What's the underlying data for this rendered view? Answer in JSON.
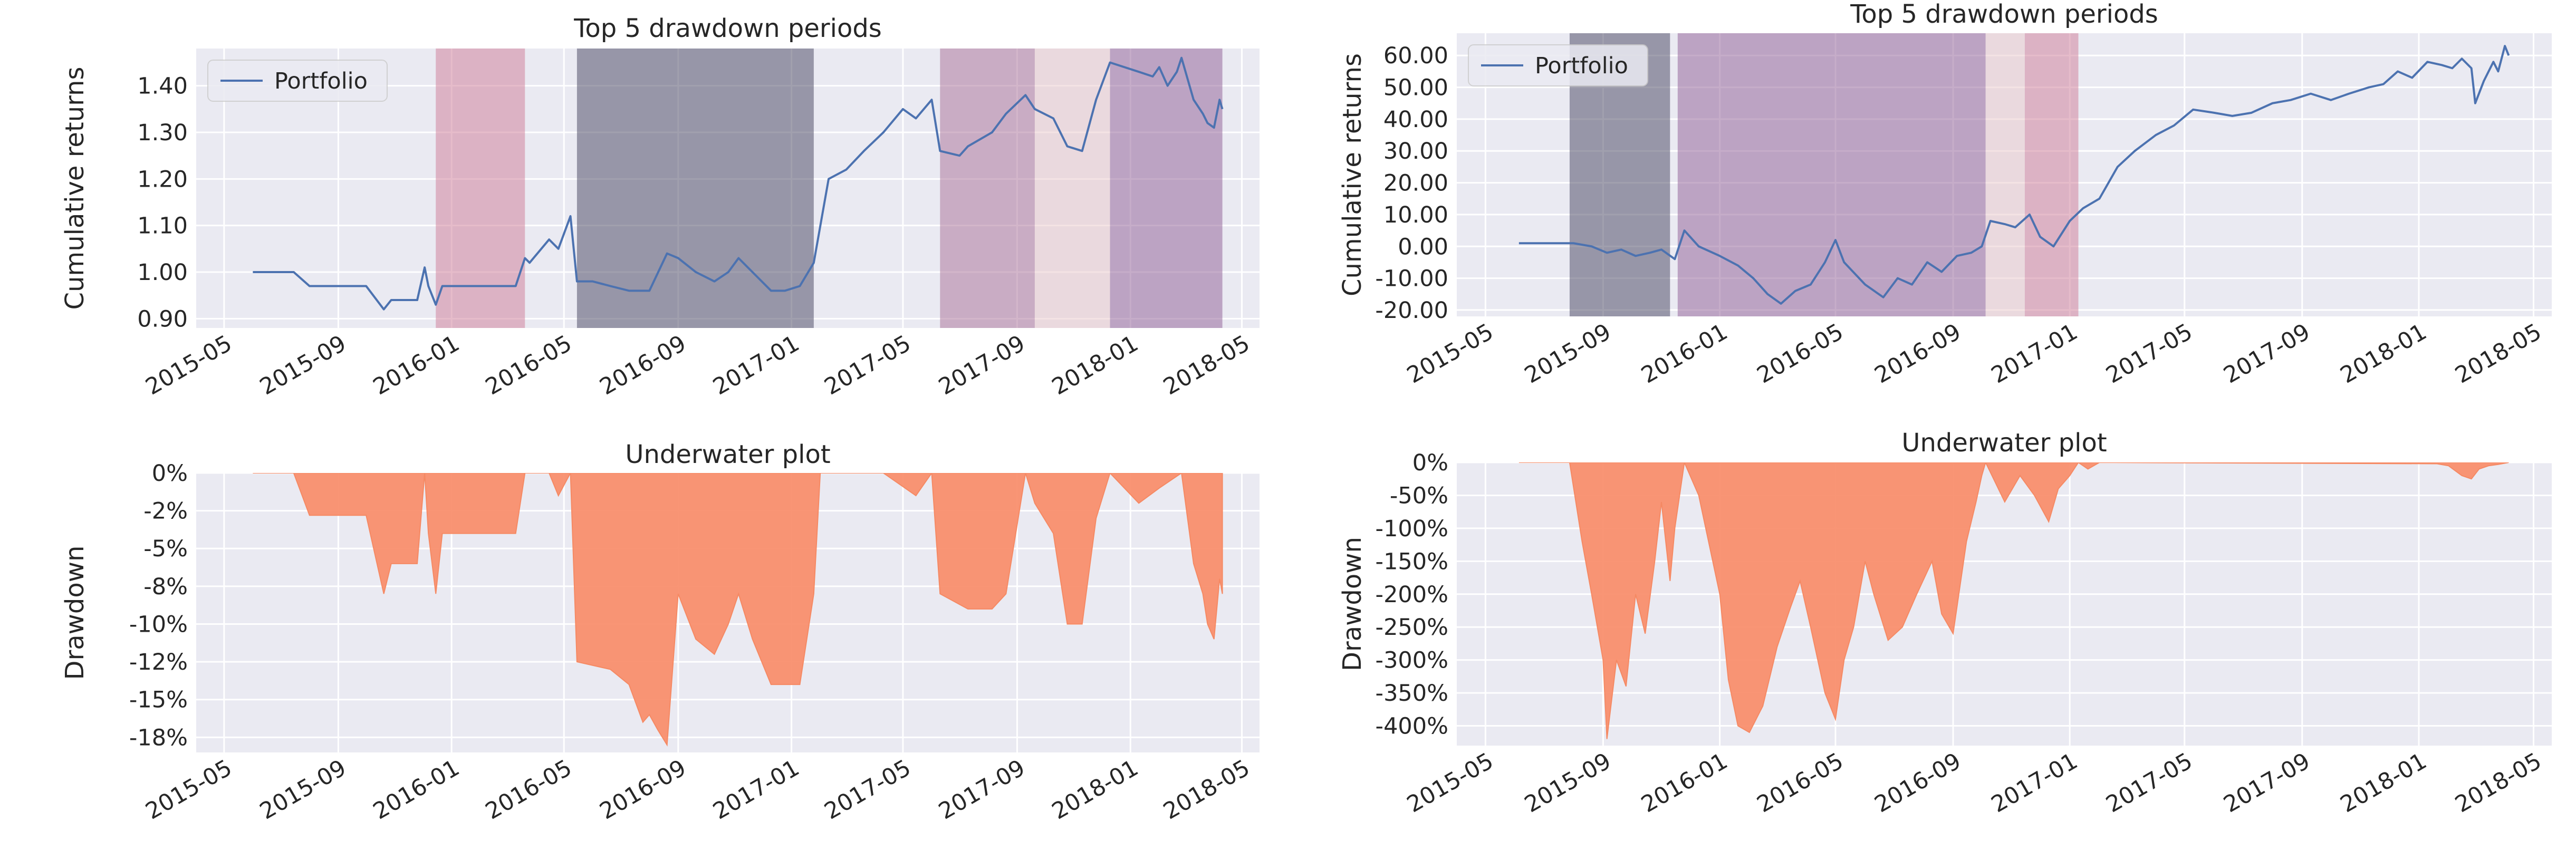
{
  "colors": {
    "portfolio_line": "#4c72b0",
    "underwater_fill": "#f9906e",
    "underwater_edge": "#f6845c",
    "period_colors": [
      "#44415e",
      "#8d5b93",
      "#a86d96",
      "#cd7a95",
      "#eac8ca"
    ]
  },
  "chart_data": [
    {
      "id": "p1-top5",
      "type": "line",
      "title": "Top 5 drawdown periods",
      "xlabel": "",
      "ylabel": "Cumulative returns",
      "xlim": [
        "2015-04-01",
        "2018-05-20"
      ],
      "ylim": [
        0.88,
        1.48
      ],
      "xticks": [
        "2015-05",
        "2015-09",
        "2016-01",
        "2016-05",
        "2016-09",
        "2017-01",
        "2017-05",
        "2017-09",
        "2018-01",
        "2018-05"
      ],
      "yticks": [
        0.9,
        1.0,
        1.1,
        1.2,
        1.3,
        1.4
      ],
      "ytick_labels": [
        "0.90",
        "1.00",
        "1.10",
        "1.20",
        "1.30",
        "1.40"
      ],
      "legend": {
        "entries": [
          "Portfolio"
        ],
        "placement": "upper-left"
      },
      "grid": true,
      "shaded_periods": [
        {
          "start": "2015-12-15",
          "end": "2016-03-20",
          "color_index": 3
        },
        {
          "start": "2016-05-15",
          "end": "2017-01-25",
          "color_index": 0
        },
        {
          "start": "2017-06-10",
          "end": "2017-09-20",
          "color_index": 2
        },
        {
          "start": "2017-09-20",
          "end": "2017-12-10",
          "color_index": 4
        },
        {
          "start": "2017-12-10",
          "end": "2018-04-10",
          "color_index": 1
        }
      ],
      "series": [
        {
          "name": "Portfolio",
          "x": [
            "2015-06-01",
            "2015-07-15",
            "2015-08-01",
            "2015-10-01",
            "2015-10-20",
            "2015-10-28",
            "2015-11-25",
            "2015-12-03",
            "2015-12-07",
            "2015-12-15",
            "2015-12-22",
            "2016-01-05",
            "2016-01-15",
            "2016-02-15",
            "2016-03-10",
            "2016-03-20",
            "2016-03-25",
            "2016-04-15",
            "2016-04-25",
            "2016-05-08",
            "2016-05-15",
            "2016-05-20",
            "2016-06-01",
            "2016-06-20",
            "2016-07-10",
            "2016-08-01",
            "2016-08-20",
            "2016-09-01",
            "2016-09-20",
            "2016-10-10",
            "2016-10-25",
            "2016-11-05",
            "2016-11-20",
            "2016-12-10",
            "2016-12-25",
            "2017-01-10",
            "2017-01-25",
            "2017-02-10",
            "2017-03-01",
            "2017-03-20",
            "2017-04-10",
            "2017-05-01",
            "2017-05-15",
            "2017-06-01",
            "2017-06-10",
            "2017-07-01",
            "2017-07-10",
            "2017-08-05",
            "2017-08-20",
            "2017-09-10",
            "2017-09-20",
            "2017-10-10",
            "2017-10-25",
            "2017-11-10",
            "2017-11-25",
            "2017-12-10",
            "2018-01-10",
            "2018-01-25",
            "2018-02-01",
            "2018-02-10",
            "2018-02-20",
            "2018-02-25",
            "2018-03-10",
            "2018-03-20",
            "2018-03-25",
            "2018-04-01",
            "2018-04-07",
            "2018-04-10"
          ],
          "y": [
            1.0,
            1.0,
            0.97,
            0.97,
            0.92,
            0.94,
            0.94,
            1.01,
            0.97,
            0.93,
            0.97,
            0.97,
            0.97,
            0.97,
            0.97,
            1.03,
            1.02,
            1.07,
            1.05,
            1.12,
            0.98,
            0.98,
            0.98,
            0.97,
            0.96,
            0.96,
            1.04,
            1.03,
            1.0,
            0.98,
            1.0,
            1.03,
            1.0,
            0.96,
            0.96,
            0.97,
            1.02,
            1.2,
            1.22,
            1.26,
            1.3,
            1.35,
            1.33,
            1.37,
            1.26,
            1.25,
            1.27,
            1.3,
            1.34,
            1.38,
            1.35,
            1.33,
            1.27,
            1.26,
            1.37,
            1.45,
            1.43,
            1.42,
            1.44,
            1.4,
            1.43,
            1.46,
            1.37,
            1.34,
            1.32,
            1.31,
            1.37,
            1.35
          ]
        }
      ]
    },
    {
      "id": "p1-underwater",
      "type": "area",
      "title": "Underwater plot",
      "xlabel": "",
      "ylabel": "Drawdown",
      "xlim": [
        "2015-04-01",
        "2018-05-20"
      ],
      "ylim": [
        -18.5,
        0
      ],
      "xticks": [
        "2015-05",
        "2015-09",
        "2016-01",
        "2016-05",
        "2016-09",
        "2017-01",
        "2017-05",
        "2017-09",
        "2018-01",
        "2018-05"
      ],
      "yticks": [
        0,
        -2.5,
        -5,
        -7.5,
        -10,
        -12.5,
        -15,
        -17.5
      ],
      "ytick_labels": [
        "0%",
        "-2%",
        "-5%",
        "-8%",
        "-10%",
        "-12%",
        "-15%",
        "-18%"
      ],
      "grid": true,
      "series": [
        {
          "name": "",
          "x": [
            "2015-06-01",
            "2015-07-15",
            "2015-08-01",
            "2015-10-01",
            "2015-10-20",
            "2015-10-28",
            "2015-11-25",
            "2015-12-03",
            "2015-12-07",
            "2015-12-15",
            "2015-12-22",
            "2016-01-05",
            "2016-02-15",
            "2016-03-10",
            "2016-03-20",
            "2016-04-15",
            "2016-04-25",
            "2016-05-08",
            "2016-05-15",
            "2016-06-20",
            "2016-07-10",
            "2016-07-25",
            "2016-08-01",
            "2016-08-10",
            "2016-08-20",
            "2016-09-01",
            "2016-09-20",
            "2016-10-10",
            "2016-10-25",
            "2016-11-05",
            "2016-11-20",
            "2016-12-10",
            "2016-12-25",
            "2017-01-10",
            "2017-01-25",
            "2017-02-01",
            "2017-04-10",
            "2017-05-15",
            "2017-06-01",
            "2017-06-10",
            "2017-07-10",
            "2017-08-05",
            "2017-08-20",
            "2017-09-10",
            "2017-09-20",
            "2017-10-10",
            "2017-10-25",
            "2017-11-10",
            "2017-11-25",
            "2017-12-10",
            "2018-01-10",
            "2018-02-01",
            "2018-02-25",
            "2018-03-10",
            "2018-03-20",
            "2018-03-25",
            "2018-04-01",
            "2018-04-07",
            "2018-04-10"
          ],
          "y": [
            0,
            0,
            -2.8,
            -2.8,
            -8.0,
            -6.0,
            -6.0,
            0,
            -4.0,
            -8.0,
            -4.0,
            -4.0,
            -4.0,
            -4.0,
            0,
            0,
            -1.5,
            0,
            -12.5,
            -13,
            -14,
            -16.5,
            -16,
            -17,
            -18,
            -8,
            -11,
            -12,
            -10,
            -8,
            -11,
            -14,
            -14,
            -14,
            -8,
            0,
            0,
            -1.5,
            0,
            -8,
            -9,
            -9,
            -8,
            0,
            -2,
            -4,
            -10,
            -10,
            -3,
            0,
            -2,
            -1,
            0,
            -6,
            -8,
            -10,
            -11,
            -7,
            -8
          ]
        }
      ]
    },
    {
      "id": "p2-top5",
      "type": "line",
      "title": "Top 5 drawdown periods",
      "xlabel": "",
      "ylabel": "Cumulative returns",
      "xlim": [
        "2015-04-01",
        "2018-05-20"
      ],
      "ylim": [
        -22,
        67
      ],
      "xticks": [
        "2015-05",
        "2015-09",
        "2016-01",
        "2016-05",
        "2016-09",
        "2017-01",
        "2017-05",
        "2017-09",
        "2018-01",
        "2018-05"
      ],
      "yticks": [
        60,
        50,
        40,
        30,
        20,
        10,
        0,
        -10,
        -20
      ],
      "ytick_labels": [
        "60.00",
        "50.00",
        "40.00",
        "30.00",
        "20.00",
        "10.00",
        "0.00",
        "-10.00",
        "-20.00"
      ],
      "legend": {
        "entries": [
          "Portfolio"
        ],
        "placement": "upper-left"
      },
      "grid": true,
      "shaded_periods": [
        {
          "start": "2015-07-28",
          "end": "2015-11-10",
          "color_index": 0
        },
        {
          "start": "2015-11-18",
          "end": "2016-10-05",
          "color_index": 1
        },
        {
          "start": "2016-10-05",
          "end": "2016-11-15",
          "color_index": 4
        },
        {
          "start": "2016-11-15",
          "end": "2017-01-10",
          "color_index": 3
        }
      ],
      "series": [
        {
          "name": "Portfolio",
          "x": [
            "2015-06-05",
            "2015-07-01",
            "2015-08-01",
            "2015-08-20",
            "2015-09-05",
            "2015-09-20",
            "2015-10-05",
            "2015-10-20",
            "2015-11-01",
            "2015-11-15",
            "2015-11-25",
            "2015-12-10",
            "2016-01-01",
            "2016-01-20",
            "2016-02-05",
            "2016-02-20",
            "2016-03-05",
            "2016-03-20",
            "2016-04-05",
            "2016-04-20",
            "2016-05-01",
            "2016-05-10",
            "2016-06-01",
            "2016-06-20",
            "2016-07-05",
            "2016-07-20",
            "2016-08-05",
            "2016-08-20",
            "2016-09-05",
            "2016-09-20",
            "2016-10-01",
            "2016-10-10",
            "2016-10-25",
            "2016-11-05",
            "2016-11-20",
            "2016-12-01",
            "2016-12-15",
            "2017-01-01",
            "2017-01-15",
            "2017-02-01",
            "2017-02-20",
            "2017-03-10",
            "2017-04-01",
            "2017-04-20",
            "2017-05-10",
            "2017-06-01",
            "2017-06-20",
            "2017-07-10",
            "2017-08-01",
            "2017-08-20",
            "2017-09-10",
            "2017-10-01",
            "2017-10-20",
            "2017-11-10",
            "2017-11-25",
            "2017-12-10",
            "2017-12-25",
            "2018-01-10",
            "2018-01-25",
            "2018-02-05",
            "2018-02-15",
            "2018-02-25",
            "2018-03-01",
            "2018-03-10",
            "2018-03-20",
            "2018-03-25",
            "2018-04-01",
            "2018-04-05"
          ],
          "y": [
            1,
            1,
            1,
            0,
            -2,
            -1,
            -3,
            -2,
            -1,
            -4,
            5,
            0,
            -3,
            -6,
            -10,
            -15,
            -18,
            -14,
            -12,
            -5,
            2,
            -5,
            -12,
            -16,
            -10,
            -12,
            -5,
            -8,
            -3,
            -2,
            0,
            8,
            7,
            6,
            10,
            3,
            0,
            8,
            12,
            15,
            25,
            30,
            35,
            38,
            43,
            42,
            41,
            42,
            45,
            46,
            48,
            46,
            48,
            50,
            51,
            55,
            53,
            58,
            57,
            56,
            59,
            56,
            45,
            52,
            58,
            55,
            63,
            60
          ]
        }
      ]
    },
    {
      "id": "p2-underwater",
      "type": "area",
      "title": "Underwater plot",
      "xlabel": "",
      "ylabel": "Drawdown",
      "xlim": [
        "2015-04-01",
        "2018-05-20"
      ],
      "ylim": [
        -430,
        0
      ],
      "xticks": [
        "2015-05",
        "2015-09",
        "2016-01",
        "2016-05",
        "2016-09",
        "2017-01",
        "2017-05",
        "2017-09",
        "2018-01",
        "2018-05"
      ],
      "yticks": [
        0,
        -50,
        -100,
        -150,
        -200,
        -250,
        -300,
        -350,
        -400
      ],
      "ytick_labels": [
        "0%",
        "-50%",
        "-100%",
        "-150%",
        "-200%",
        "-250%",
        "-300%",
        "-350%",
        "-400%"
      ],
      "grid": true,
      "series": [
        {
          "name": "",
          "x": [
            "2015-06-05",
            "2015-07-28",
            "2015-08-10",
            "2015-08-20",
            "2015-09-01",
            "2015-09-05",
            "2015-09-15",
            "2015-09-25",
            "2015-10-05",
            "2015-10-15",
            "2015-10-25",
            "2015-11-01",
            "2015-11-10",
            "2015-11-15",
            "2015-11-25",
            "2015-12-10",
            "2016-01-01",
            "2016-01-10",
            "2016-01-20",
            "2016-02-01",
            "2016-02-15",
            "2016-03-01",
            "2016-03-15",
            "2016-03-25",
            "2016-04-05",
            "2016-04-20",
            "2016-05-01",
            "2016-05-10",
            "2016-05-20",
            "2016-06-01",
            "2016-06-10",
            "2016-06-25",
            "2016-07-10",
            "2016-07-25",
            "2016-08-10",
            "2016-08-20",
            "2016-09-01",
            "2016-09-15",
            "2016-09-25",
            "2016-10-01",
            "2016-10-05",
            "2016-10-15",
            "2016-10-25",
            "2016-11-10",
            "2016-11-25",
            "2016-12-10",
            "2016-12-20",
            "2017-01-01",
            "2017-01-10",
            "2017-01-20",
            "2017-02-01",
            "2018-01-20",
            "2018-02-01",
            "2018-02-15",
            "2018-02-25",
            "2018-03-05",
            "2018-03-15",
            "2018-03-25",
            "2018-04-05"
          ],
          "y": [
            0,
            0,
            -120,
            -200,
            -300,
            -420,
            -300,
            -340,
            -200,
            -260,
            -150,
            -60,
            -180,
            -100,
            0,
            -50,
            -200,
            -330,
            -400,
            -410,
            -370,
            -280,
            -220,
            -180,
            -250,
            -350,
            -390,
            -300,
            -250,
            -150,
            -200,
            -270,
            -250,
            -200,
            -150,
            -230,
            -260,
            -120,
            -60,
            -20,
            0,
            -30,
            -60,
            -20,
            -50,
            -90,
            -40,
            -20,
            0,
            -10,
            0,
            -2,
            -5,
            -20,
            -25,
            -10,
            -5,
            -3,
            0
          ]
        }
      ]
    }
  ]
}
